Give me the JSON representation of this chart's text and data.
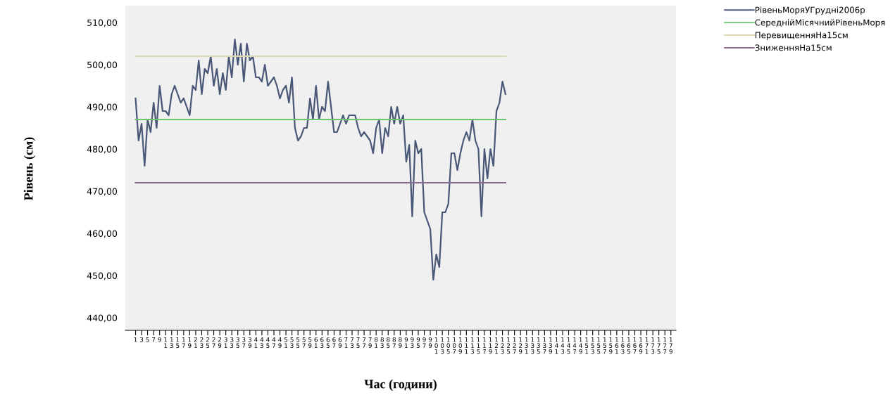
{
  "chart_data": {
    "type": "line",
    "xlabel": "Час (години)",
    "ylabel": "Рівень (см)",
    "categories": [
      "1",
      null,
      "3",
      null,
      "5",
      null,
      "7",
      null,
      "9",
      null,
      "11",
      null,
      "13",
      null,
      "15",
      null,
      "17",
      null,
      "19",
      null,
      "21",
      null,
      "23",
      null,
      "25",
      null,
      "27",
      null,
      "29",
      null,
      "31",
      null,
      "33",
      null,
      "35",
      null,
      "37",
      null,
      "39",
      null,
      "41",
      null,
      "43",
      null,
      "45",
      null,
      "47",
      null,
      "49",
      null,
      "51",
      null,
      "53",
      null,
      "55",
      null,
      "57",
      null,
      "59",
      null,
      "61",
      null,
      "63",
      null,
      "65",
      null,
      "67",
      null,
      "69",
      null,
      "71",
      null,
      "73",
      null,
      "75",
      null,
      "77",
      null,
      "79",
      null,
      "81",
      null,
      "83",
      null,
      "85",
      null,
      "87",
      null,
      "89",
      null,
      "91",
      null,
      "93",
      null,
      "95",
      null,
      "97",
      null,
      "99",
      null,
      "101",
      null,
      "103",
      null,
      "105",
      null,
      "107",
      null,
      "109",
      null,
      "111",
      null,
      "113",
      null,
      "115",
      null,
      "117",
      null,
      "119",
      null,
      "121",
      null,
      "123",
      null,
      "125",
      null,
      "127",
      null,
      "129",
      null,
      "131",
      null,
      "133",
      null,
      "135",
      null,
      "137",
      null,
      "139",
      null,
      "141",
      null,
      "143",
      null,
      "145",
      null,
      "147",
      null,
      "149",
      null,
      "151",
      null,
      "153",
      null,
      "155",
      null,
      "157",
      null,
      "159",
      null,
      "161",
      null,
      "163",
      null,
      "165",
      null,
      "167",
      null,
      "169",
      null,
      "171",
      null,
      "173",
      null,
      "175",
      null,
      "177",
      null,
      "179"
    ],
    "series": [
      {
        "name": "РівеньМоряУГрудні2006р",
        "color": "#4a5878",
        "values": [
          492,
          482,
          486,
          476,
          487,
          484,
          491,
          485,
          495,
          489,
          489,
          488,
          493,
          495,
          493,
          491,
          492,
          490,
          488,
          495,
          494,
          501,
          493,
          499,
          498,
          502,
          495,
          499,
          493,
          498,
          494,
          502,
          497,
          506,
          500,
          505,
          496,
          505,
          501,
          502,
          497,
          497,
          496,
          500,
          495,
          496,
          497,
          495,
          492,
          494,
          495,
          491,
          497,
          485,
          482,
          483,
          485,
          485,
          492,
          487,
          495,
          487,
          490,
          489,
          496,
          490,
          484,
          484,
          486,
          488,
          486,
          488,
          488,
          488,
          485,
          483,
          484,
          483,
          482,
          479,
          485,
          487,
          479,
          485,
          483,
          490,
          486,
          490,
          486,
          488,
          477,
          481,
          464,
          482,
          479,
          480,
          465,
          463,
          461,
          449,
          455,
          452,
          465,
          465,
          467,
          479,
          479,
          475,
          479,
          482,
          484,
          482,
          487,
          482,
          480,
          464,
          480,
          473,
          480,
          476,
          489,
          491,
          496,
          493,
          null,
          null,
          null,
          null,
          null,
          null,
          null,
          null,
          null,
          null,
          null,
          null,
          null,
          null,
          null,
          null,
          null,
          null,
          null,
          null,
          null,
          null,
          null,
          null,
          null,
          null,
          null,
          null,
          null,
          null,
          null,
          null,
          null,
          null,
          null,
          null,
          null,
          null,
          null,
          null,
          null,
          null,
          null,
          null,
          null,
          null,
          null,
          null,
          null,
          null,
          null,
          null,
          null,
          null,
          null
        ]
      },
      {
        "name": "СереднійМісячнийРівеньМоря",
        "color": "#6cc46c",
        "values": [
          487,
          487,
          487,
          487,
          487,
          487,
          487,
          487,
          487,
          487,
          487,
          487,
          487,
          487,
          487,
          487,
          487,
          487,
          487,
          487,
          487,
          487,
          487,
          487,
          487,
          487,
          487,
          487,
          487,
          487,
          487,
          487,
          487,
          487,
          487,
          487,
          487,
          487,
          487,
          487,
          487,
          487,
          487,
          487,
          487,
          487,
          487,
          487,
          487,
          487,
          487,
          487,
          487,
          487,
          487,
          487,
          487,
          487,
          487,
          487,
          487,
          487,
          487,
          487,
          487,
          487,
          487,
          487,
          487,
          487,
          487,
          487,
          487,
          487,
          487,
          487,
          487,
          487,
          487,
          487,
          487,
          487,
          487,
          487,
          487,
          487,
          487,
          487,
          487,
          487,
          487,
          487,
          487,
          487,
          487,
          487,
          487,
          487,
          487,
          487,
          487,
          487,
          487,
          487,
          487,
          487,
          487,
          487,
          487,
          487,
          487,
          487,
          487,
          487,
          487,
          487,
          487,
          487,
          487,
          487,
          487,
          487,
          487,
          487,
          null,
          null,
          null,
          null,
          null,
          null,
          null,
          null,
          null,
          null,
          null,
          null,
          null,
          null,
          null,
          null,
          null,
          null,
          null,
          null,
          null,
          null,
          null,
          null,
          null,
          null,
          null,
          null,
          null,
          null,
          null,
          null,
          null,
          null,
          null,
          null,
          null,
          null,
          null,
          null,
          null,
          null,
          null,
          null,
          null,
          null,
          null,
          null,
          null,
          null,
          null,
          null,
          null,
          null,
          null
        ]
      },
      {
        "name": "ПеревищенняНа15см",
        "color": "#ddd8b0",
        "values": [
          502,
          502,
          502,
          502,
          502,
          502,
          502,
          502,
          502,
          502,
          502,
          502,
          502,
          502,
          502,
          502,
          502,
          502,
          502,
          502,
          502,
          502,
          502,
          502,
          502,
          502,
          502,
          502,
          502,
          502,
          502,
          502,
          502,
          502,
          502,
          502,
          502,
          502,
          502,
          502,
          502,
          502,
          502,
          502,
          502,
          502,
          502,
          502,
          502,
          502,
          502,
          502,
          502,
          502,
          502,
          502,
          502,
          502,
          502,
          502,
          502,
          502,
          502,
          502,
          502,
          502,
          502,
          502,
          502,
          502,
          502,
          502,
          502,
          502,
          502,
          502,
          502,
          502,
          502,
          502,
          502,
          502,
          502,
          502,
          502,
          502,
          502,
          502,
          502,
          502,
          502,
          502,
          502,
          502,
          502,
          502,
          502,
          502,
          502,
          502,
          502,
          502,
          502,
          502,
          502,
          502,
          502,
          502,
          502,
          502,
          502,
          502,
          502,
          502,
          502,
          502,
          502,
          502,
          502,
          502,
          502,
          502,
          502,
          502,
          null,
          null,
          null,
          null,
          null,
          null,
          null,
          null,
          null,
          null,
          null,
          null,
          null,
          null,
          null,
          null,
          null,
          null,
          null,
          null,
          null,
          null,
          null,
          null,
          null,
          null,
          null,
          null,
          null,
          null,
          null,
          null,
          null,
          null,
          null,
          null,
          null,
          null,
          null,
          null,
          null,
          null,
          null,
          null,
          null,
          null,
          null,
          null,
          null,
          null,
          null,
          null,
          null,
          null,
          null
        ]
      },
      {
        "name": "ЗниженняНа15см",
        "color": "#8a6a8c",
        "values": [
          472,
          472,
          472,
          472,
          472,
          472,
          472,
          472,
          472,
          472,
          472,
          472,
          472,
          472,
          472,
          472,
          472,
          472,
          472,
          472,
          472,
          472,
          472,
          472,
          472,
          472,
          472,
          472,
          472,
          472,
          472,
          472,
          472,
          472,
          472,
          472,
          472,
          472,
          472,
          472,
          472,
          472,
          472,
          472,
          472,
          472,
          472,
          472,
          472,
          472,
          472,
          472,
          472,
          472,
          472,
          472,
          472,
          472,
          472,
          472,
          472,
          472,
          472,
          472,
          472,
          472,
          472,
          472,
          472,
          472,
          472,
          472,
          472,
          472,
          472,
          472,
          472,
          472,
          472,
          472,
          472,
          472,
          472,
          472,
          472,
          472,
          472,
          472,
          472,
          472,
          472,
          472,
          472,
          472,
          472,
          472,
          472,
          472,
          472,
          472,
          472,
          472,
          472,
          472,
          472,
          472,
          472,
          472,
          472,
          472,
          472,
          472,
          472,
          472,
          472,
          472,
          472,
          472,
          472,
          472,
          472,
          472,
          472,
          472,
          null,
          null,
          null,
          null,
          null,
          null,
          null,
          null,
          null,
          null,
          null,
          null,
          null,
          null,
          null,
          null,
          null,
          null,
          null,
          null,
          null,
          null,
          null,
          null,
          null,
          null,
          null,
          null,
          null,
          null,
          null,
          null,
          null,
          null,
          null,
          null,
          null,
          null,
          null,
          null,
          null,
          null,
          null,
          null,
          null,
          null,
          null,
          null,
          null,
          null,
          null,
          null,
          null,
          null,
          null
        ]
      }
    ],
    "ylim": [
      437,
      514
    ],
    "yticks": [
      {
        "value": 440,
        "label": "440,00"
      },
      {
        "value": 450,
        "label": "450,00"
      },
      {
        "value": 460,
        "label": "460,00"
      },
      {
        "value": 470,
        "label": "470,00"
      },
      {
        "value": 480,
        "label": "480,00"
      },
      {
        "value": 490,
        "label": "490,00"
      },
      {
        "value": 500,
        "label": "500,00"
      },
      {
        "value": 510,
        "label": "510,00"
      }
    ],
    "grid": false,
    "legend": "top right",
    "marker": "none",
    "line_style": "solid"
  }
}
